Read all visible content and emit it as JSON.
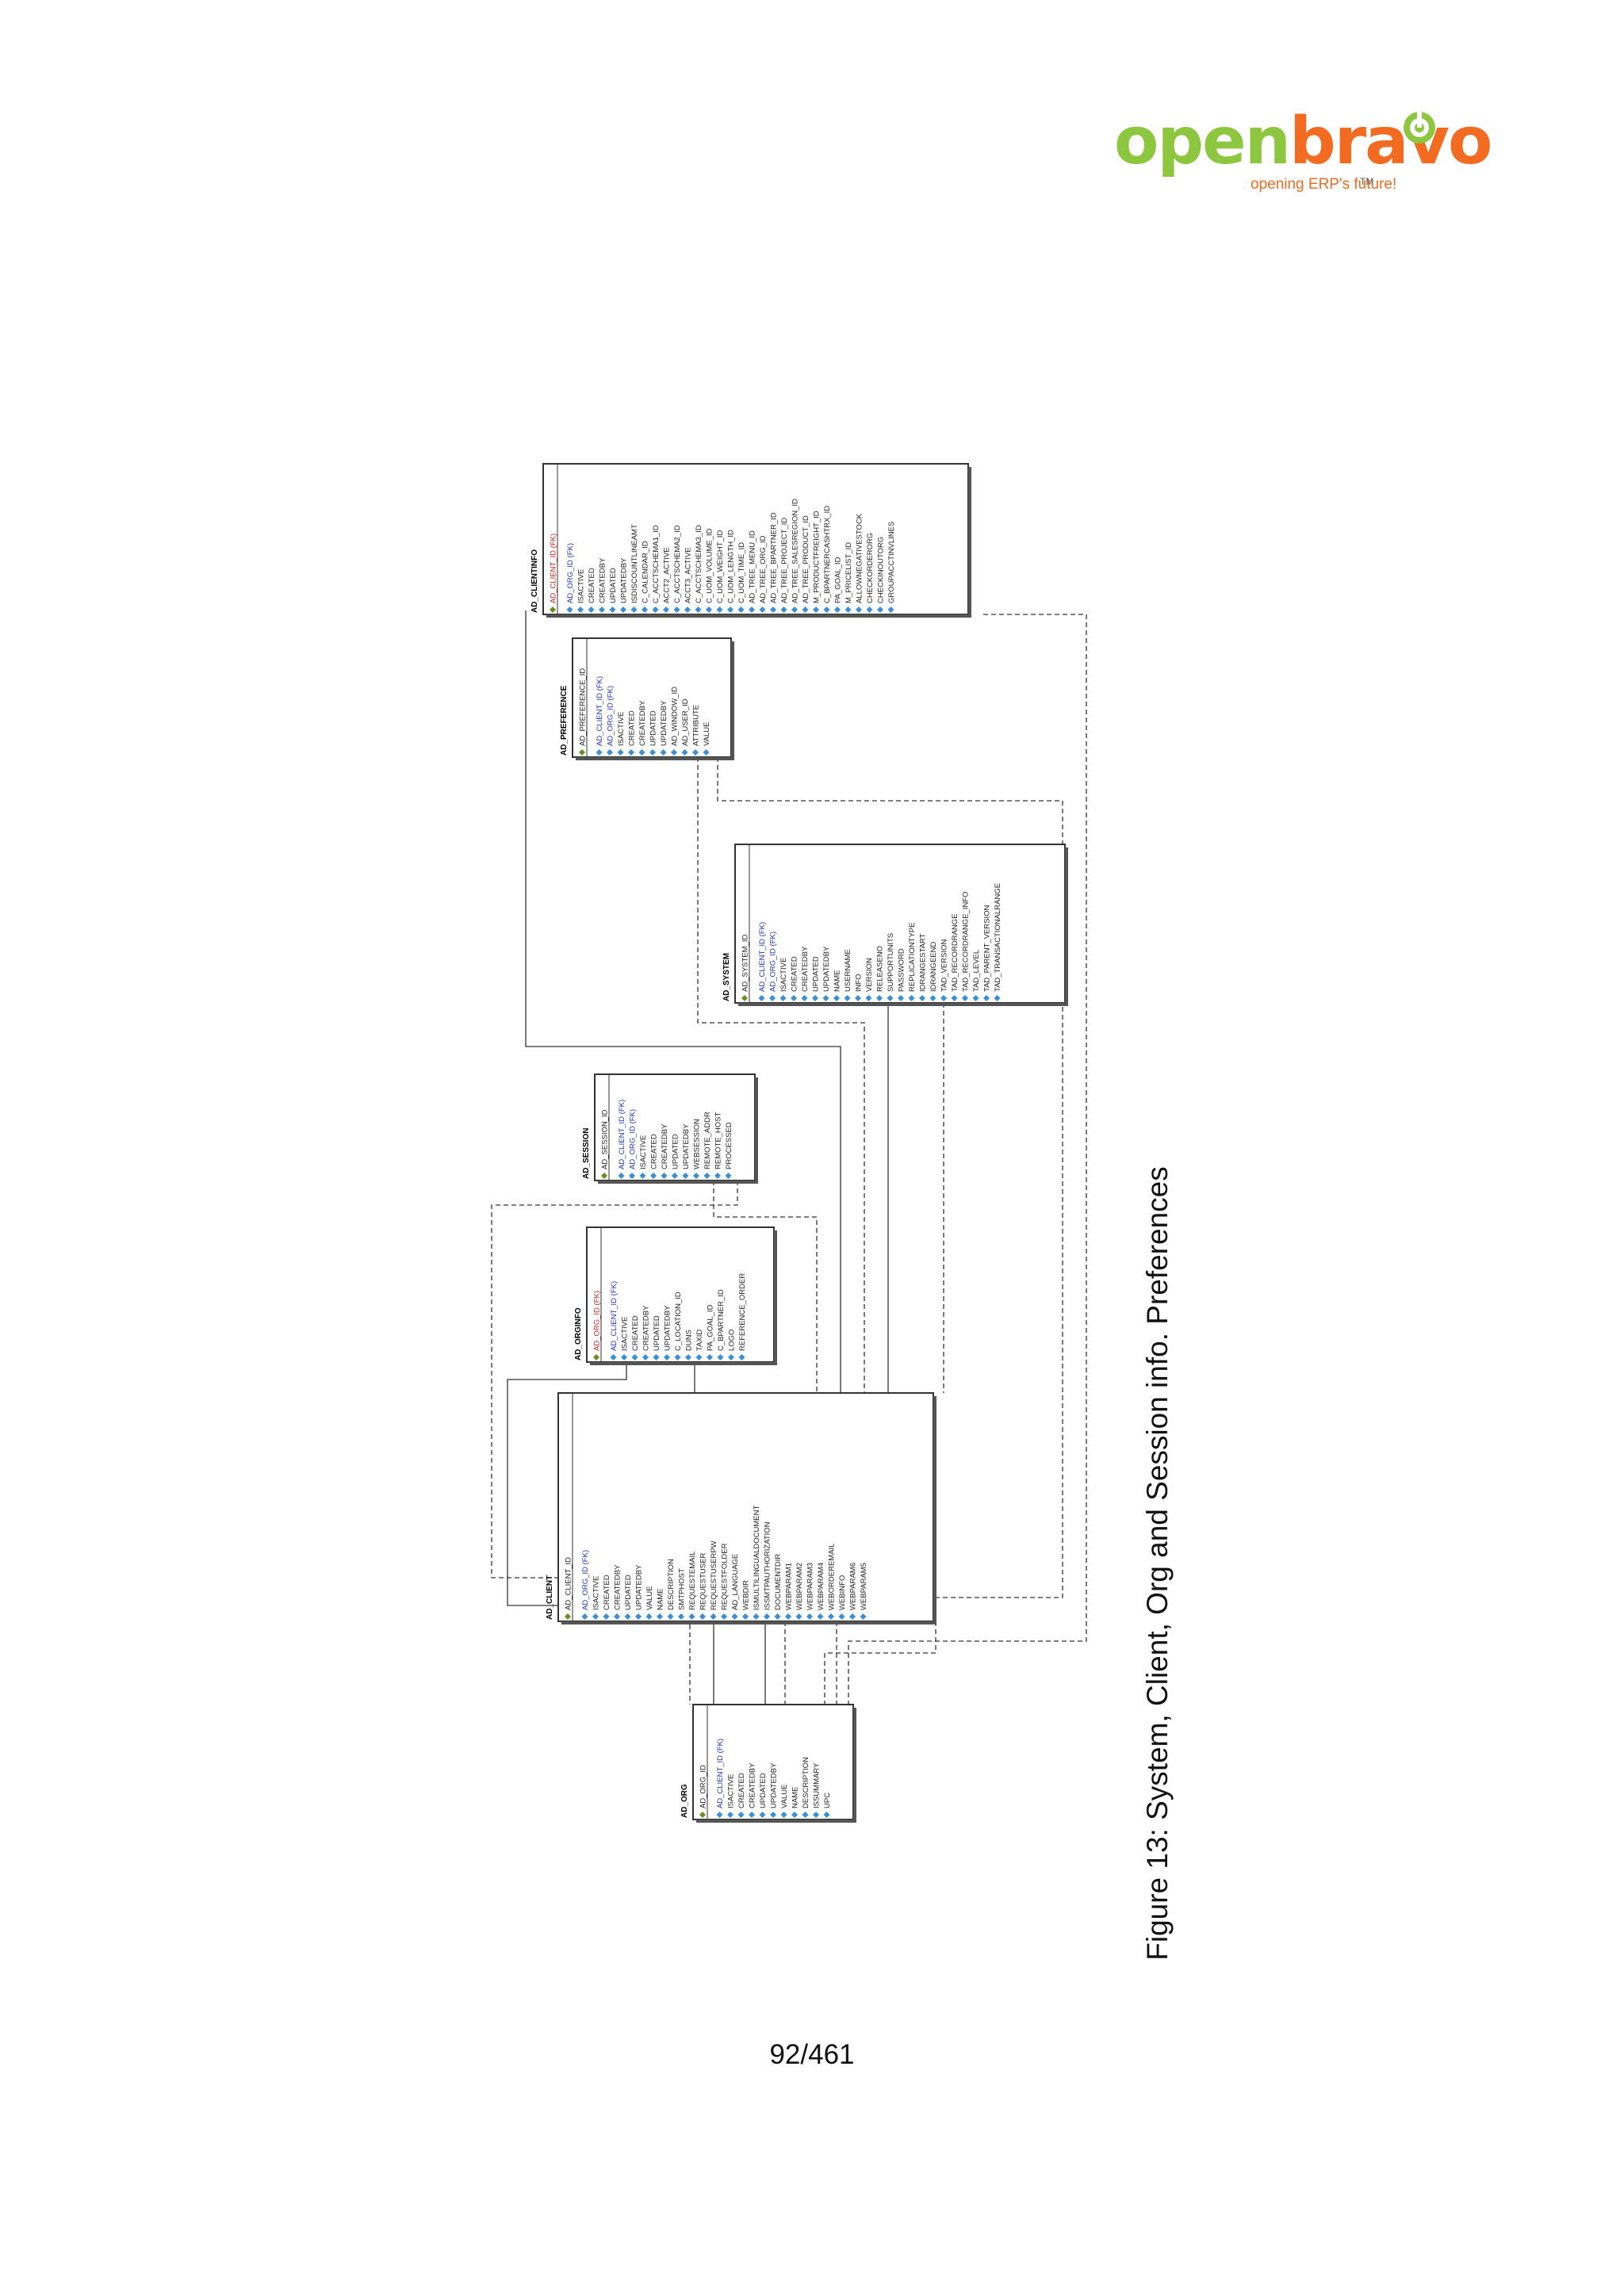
{
  "header": {
    "logo_word_open": "open",
    "logo_word_bravo": "bravo",
    "logo_tagline": "opening ERP's future!",
    "logo_tm": "TM"
  },
  "figure": {
    "caption": "Figure 13: System, Client, Org and Session info. Preferences"
  },
  "tables": [
    {
      "name": "AD_CLIENTINFO",
      "columns": [
        {
          "text": "AD_CLIENT_ID (FK)",
          "kind": "pkfk"
        },
        {
          "text": "AD_ORG_ID (FK)",
          "kind": "fk"
        },
        {
          "text": "ISACTIVE",
          "kind": "col"
        },
        {
          "text": "CREATED",
          "kind": "col"
        },
        {
          "text": "CREATEDBY",
          "kind": "col"
        },
        {
          "text": "UPDATED",
          "kind": "col"
        },
        {
          "text": "UPDATEDBY",
          "kind": "col"
        },
        {
          "text": "ISDISCOUNTLINEAMT",
          "kind": "col"
        },
        {
          "text": "C_CALENDAR_ID",
          "kind": "col"
        },
        {
          "text": "C_ACCTSCHEMA1_ID",
          "kind": "col"
        },
        {
          "text": "ACCT2_ACTIVE",
          "kind": "col"
        },
        {
          "text": "C_ACCTSCHEMA2_ID",
          "kind": "col"
        },
        {
          "text": "ACCT3_ACTIVE",
          "kind": "col"
        },
        {
          "text": "C_ACCTSCHEMA3_ID",
          "kind": "col"
        },
        {
          "text": "C_UOM_VOLUME_ID",
          "kind": "col"
        },
        {
          "text": "C_UOM_WEIGHT_ID",
          "kind": "col"
        },
        {
          "text": "C_UOM_LENGTH_ID",
          "kind": "col"
        },
        {
          "text": "C_UOM_TIME_ID",
          "kind": "col"
        },
        {
          "text": "AD_TREE_MENU_ID",
          "kind": "col"
        },
        {
          "text": "AD_TREE_ORG_ID",
          "kind": "col"
        },
        {
          "text": "AD_TREE_BPARTNER_ID",
          "kind": "col"
        },
        {
          "text": "AD_TREE_PROJECT_ID",
          "kind": "col"
        },
        {
          "text": "AD_TREE_SALESREGION_ID",
          "kind": "col"
        },
        {
          "text": "AD_TREE_PRODUCT_ID",
          "kind": "col"
        },
        {
          "text": "M_PRODUCTFREIGHT_ID",
          "kind": "col"
        },
        {
          "text": "C_BPARTNERCASHTRX_ID",
          "kind": "col"
        },
        {
          "text": "PA_GOAL_ID",
          "kind": "col"
        },
        {
          "text": "M_PRICELIST_ID",
          "kind": "col"
        },
        {
          "text": "ALLOWNEGATIVESTOCK",
          "kind": "col"
        },
        {
          "text": "CHECKORDERORG",
          "kind": "col"
        },
        {
          "text": "CHECKINOUTORG",
          "kind": "col"
        },
        {
          "text": "GROUPACCTINVLINES",
          "kind": "col"
        }
      ]
    },
    {
      "name": "AD_PREFERENCE",
      "columns": [
        {
          "text": "AD_PREFERENCE_ID",
          "kind": "pk"
        },
        {
          "text": "AD_CLIENT_ID (FK)",
          "kind": "fk"
        },
        {
          "text": "AD_ORG_ID (FK)",
          "kind": "fk"
        },
        {
          "text": "ISACTIVE",
          "kind": "col"
        },
        {
          "text": "CREATED",
          "kind": "col"
        },
        {
          "text": "CREATEDBY",
          "kind": "col"
        },
        {
          "text": "UPDATED",
          "kind": "col"
        },
        {
          "text": "UPDATEDBY",
          "kind": "col"
        },
        {
          "text": "AD_WINDOW_ID",
          "kind": "col"
        },
        {
          "text": "AD_USER_ID",
          "kind": "col"
        },
        {
          "text": "ATTRIBUTE",
          "kind": "col"
        },
        {
          "text": "VALUE",
          "kind": "col"
        }
      ]
    },
    {
      "name": "AD_SYSTEM",
      "columns": [
        {
          "text": "AD_SYSTEM_ID",
          "kind": "pk"
        },
        {
          "text": "AD_CLIENT_ID (FK)",
          "kind": "fk"
        },
        {
          "text": "AD_ORG_ID (FK)",
          "kind": "fk"
        },
        {
          "text": "ISACTIVE",
          "kind": "col"
        },
        {
          "text": "CREATED",
          "kind": "col"
        },
        {
          "text": "CREATEDBY",
          "kind": "col"
        },
        {
          "text": "UPDATED",
          "kind": "col"
        },
        {
          "text": "UPDATEDBY",
          "kind": "col"
        },
        {
          "text": "NAME",
          "kind": "col"
        },
        {
          "text": "USERNAME",
          "kind": "col"
        },
        {
          "text": "INFO",
          "kind": "col"
        },
        {
          "text": "VERSION",
          "kind": "col"
        },
        {
          "text": "RELEASENO",
          "kind": "col"
        },
        {
          "text": "SUPPORTUNITS",
          "kind": "col"
        },
        {
          "text": "PASSWORD",
          "kind": "col"
        },
        {
          "text": "REPLICATIONTYPE",
          "kind": "col"
        },
        {
          "text": "IDRANGESTART",
          "kind": "col"
        },
        {
          "text": "IDRANGEEND",
          "kind": "col"
        },
        {
          "text": "TAD_VERSION",
          "kind": "col"
        },
        {
          "text": "TAD_RECORDRANGE",
          "kind": "col"
        },
        {
          "text": "TAD_RECORDRANGE_INFO",
          "kind": "col"
        },
        {
          "text": "TAD_LEVEL",
          "kind": "col"
        },
        {
          "text": "TAD_PARENT_VERSION",
          "kind": "col"
        },
        {
          "text": "TAD_TRANSACTIONALRANGE",
          "kind": "col"
        }
      ]
    },
    {
      "name": "AD_SESSION",
      "columns": [
        {
          "text": "AD_SESSION_ID",
          "kind": "pk"
        },
        {
          "text": "AD_CLIENT_ID (FK)",
          "kind": "fk"
        },
        {
          "text": "AD_ORG_ID (FK)",
          "kind": "fk"
        },
        {
          "text": "ISACTIVE",
          "kind": "col"
        },
        {
          "text": "CREATED",
          "kind": "col"
        },
        {
          "text": "CREATEDBY",
          "kind": "col"
        },
        {
          "text": "UPDATED",
          "kind": "col"
        },
        {
          "text": "UPDATEDBY",
          "kind": "col"
        },
        {
          "text": "WEBSESSION",
          "kind": "col"
        },
        {
          "text": "REMOTE_ADDR",
          "kind": "col"
        },
        {
          "text": "REMOTE_HOST",
          "kind": "col"
        },
        {
          "text": "PROCESSED",
          "kind": "col"
        }
      ]
    },
    {
      "name": "AD_ORGINFO",
      "columns": [
        {
          "text": "AD_ORG_ID (FK)",
          "kind": "pkfk"
        },
        {
          "text": "AD_CLIENT_ID (FK)",
          "kind": "fk"
        },
        {
          "text": "ISACTIVE",
          "kind": "col"
        },
        {
          "text": "CREATED",
          "kind": "col"
        },
        {
          "text": "CREATEDBY",
          "kind": "col"
        },
        {
          "text": "UPDATED",
          "kind": "col"
        },
        {
          "text": "UPDATEDBY",
          "kind": "col"
        },
        {
          "text": "C_LOCATION_ID",
          "kind": "col"
        },
        {
          "text": "DUNS",
          "kind": "col"
        },
        {
          "text": "TAXID",
          "kind": "col"
        },
        {
          "text": "PA_GOAL_ID",
          "kind": "col"
        },
        {
          "text": "C_BPARTNER_ID",
          "kind": "col"
        },
        {
          "text": "LOGO",
          "kind": "col"
        },
        {
          "text": "REFERENCE_ORDER",
          "kind": "col"
        }
      ]
    },
    {
      "name": "AD_CLIENT",
      "columns": [
        {
          "text": "AD_CLIENT_ID",
          "kind": "pk"
        },
        {
          "text": "AD_ORG_ID (FK)",
          "kind": "fk"
        },
        {
          "text": "ISACTIVE",
          "kind": "col"
        },
        {
          "text": "CREATED",
          "kind": "col"
        },
        {
          "text": "CREATEDBY",
          "kind": "col"
        },
        {
          "text": "UPDATED",
          "kind": "col"
        },
        {
          "text": "UPDATEDBY",
          "kind": "col"
        },
        {
          "text": "VALUE",
          "kind": "col"
        },
        {
          "text": "NAME",
          "kind": "col"
        },
        {
          "text": "DESCRIPTION",
          "kind": "col"
        },
        {
          "text": "SMTPHOST",
          "kind": "col"
        },
        {
          "text": "REQUESTEMAIL",
          "kind": "col"
        },
        {
          "text": "REQUESTUSER",
          "kind": "col"
        },
        {
          "text": "REQUESTUSERPW",
          "kind": "col"
        },
        {
          "text": "REQUESTFOLDER",
          "kind": "col"
        },
        {
          "text": "AD_LANGUAGE",
          "kind": "col"
        },
        {
          "text": "WEBDIR",
          "kind": "col"
        },
        {
          "text": "ISMULTILINGUALDOCUMENT",
          "kind": "col"
        },
        {
          "text": "ISSMTPAUTHORIZATION",
          "kind": "col"
        },
        {
          "text": "DOCUMENTDIR",
          "kind": "col"
        },
        {
          "text": "WEBPARAM1",
          "kind": "col"
        },
        {
          "text": "WEBPARAM2",
          "kind": "col"
        },
        {
          "text": "WEBPARAM3",
          "kind": "col"
        },
        {
          "text": "WEBPARAM4",
          "kind": "col"
        },
        {
          "text": "WEBORDEREMAIL",
          "kind": "col"
        },
        {
          "text": "WEBINFO",
          "kind": "col"
        },
        {
          "text": "WEBPARAM6",
          "kind": "col"
        },
        {
          "text": "WEBPARAM5",
          "kind": "col"
        }
      ]
    },
    {
      "name": "AD_ORG",
      "columns": [
        {
          "text": "AD_ORG_ID",
          "kind": "pk"
        },
        {
          "text": "AD_CLIENT_ID (FK)",
          "kind": "fk"
        },
        {
          "text": "ISACTIVE",
          "kind": "col"
        },
        {
          "text": "CREATED",
          "kind": "col"
        },
        {
          "text": "CREATEDBY",
          "kind": "col"
        },
        {
          "text": "UPDATED",
          "kind": "col"
        },
        {
          "text": "UPDATEDBY",
          "kind": "col"
        },
        {
          "text": "VALUE",
          "kind": "col"
        },
        {
          "text": "NAME",
          "kind": "col"
        },
        {
          "text": "DESCRIPTION",
          "kind": "col"
        },
        {
          "text": "ISSUMMARY",
          "kind": "col"
        },
        {
          "text": "UPC",
          "kind": "col"
        }
      ]
    }
  ],
  "footer": {
    "page_number": "92/461"
  },
  "colors": {
    "pk_text": "#cc2222",
    "fk_text": "#2233bb",
    "col_text": "#222222",
    "icon": "#3a8fd6",
    "key_icon": "#6b8e23",
    "border": "#333333"
  }
}
